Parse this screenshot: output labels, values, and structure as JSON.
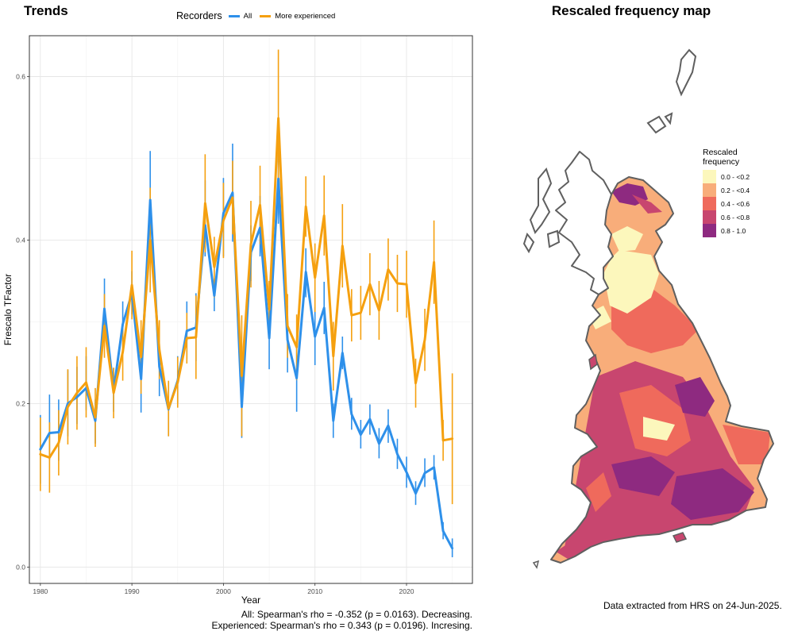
{
  "titles": {
    "left": "Trends",
    "right": "Rescaled frequency map"
  },
  "trend_legend": {
    "title": "Recorders",
    "items": [
      {
        "label": "All",
        "color": "#2e90ea"
      },
      {
        "label": "More experienced",
        "color": "#f5a00f"
      }
    ]
  },
  "stats": {
    "all": "All: Spearman's rho = -0.352 (p = 0.0163). Decreasing.",
    "experienced": "Experienced: Spearman's rho = 0.343 (p = 0.0196). Incresing."
  },
  "map": {
    "source_note": "Data extracted from HRS on 24-Jun-2025.",
    "legend_title_1": "Rescaled",
    "legend_title_2": "frequency",
    "legend": [
      {
        "label": "0.0 - <0.2",
        "color": "#fcf7bc"
      },
      {
        "label": "0.2 - <0.4",
        "color": "#f8ad7a"
      },
      {
        "label": "0.4 - <0.6",
        "color": "#ef6a5c"
      },
      {
        "label": "0.6 - <0.8",
        "color": "#c8466f"
      },
      {
        "label": "0.8 - 1.0",
        "color": "#8e2a80"
      }
    ]
  },
  "chart_data": {
    "type": "line",
    "title": "",
    "xlabel": "Year",
    "ylabel": "Frescalo TFactor",
    "xlim": [
      1978.8,
      2027.2
    ],
    "ylim": [
      -0.02,
      0.65
    ],
    "xticks": [
      1980,
      1990,
      2000,
      2010,
      2020
    ],
    "yticks": [
      0.0,
      0.2,
      0.4,
      0.6
    ],
    "ytick_labels": [
      "0.0",
      "0.2",
      "0.4",
      "0.6"
    ],
    "grid": true,
    "legend_position": "top",
    "x": [
      1980,
      1981,
      1982,
      1983,
      1984,
      1985,
      1986,
      1987,
      1988,
      1989,
      1990,
      1991,
      1992,
      1993,
      1994,
      1995,
      1996,
      1997,
      1998,
      1999,
      2000,
      2001,
      2002,
      2003,
      2004,
      2005,
      2006,
      2007,
      2008,
      2009,
      2010,
      2011,
      2012,
      2013,
      2014,
      2015,
      2016,
      2017,
      2018,
      2019,
      2020,
      2021,
      2022,
      2023,
      2024,
      2025
    ],
    "series": [
      {
        "name": "All",
        "color": "#2e90ea",
        "values": [
          0.144,
          0.164,
          0.165,
          0.2,
          0.208,
          0.219,
          0.179,
          0.316,
          0.216,
          0.297,
          0.335,
          0.23,
          0.449,
          0.245,
          0.193,
          0.228,
          0.289,
          0.293,
          0.418,
          0.332,
          0.433,
          0.458,
          0.196,
          0.385,
          0.415,
          0.28,
          0.475,
          0.278,
          0.231,
          0.361,
          0.282,
          0.317,
          0.179,
          0.262,
          0.187,
          0.162,
          0.181,
          0.151,
          0.173,
          0.138,
          0.116,
          0.09,
          0.115,
          0.122,
          0.044,
          0.023
        ],
        "lower": [
          0.102,
          0.131,
          0.13,
          0.16,
          0.175,
          0.192,
          0.151,
          0.28,
          0.19,
          0.268,
          0.309,
          0.189,
          0.389,
          0.209,
          0.16,
          0.2,
          0.254,
          0.252,
          0.38,
          0.313,
          0.38,
          0.398,
          0.158,
          0.35,
          0.38,
          0.242,
          0.42,
          0.238,
          0.19,
          0.33,
          0.247,
          0.285,
          0.158,
          0.242,
          0.168,
          0.145,
          0.162,
          0.133,
          0.152,
          0.12,
          0.097,
          0.076,
          0.098,
          0.107,
          0.034,
          0.012
        ],
        "upper": [
          0.186,
          0.211,
          0.205,
          0.241,
          0.245,
          0.258,
          0.205,
          0.353,
          0.243,
          0.325,
          0.362,
          0.271,
          0.509,
          0.282,
          0.226,
          0.258,
          0.325,
          0.335,
          0.473,
          0.353,
          0.476,
          0.518,
          0.236,
          0.418,
          0.454,
          0.32,
          0.53,
          0.32,
          0.27,
          0.39,
          0.318,
          0.349,
          0.2,
          0.282,
          0.207,
          0.18,
          0.199,
          0.17,
          0.193,
          0.157,
          0.135,
          0.105,
          0.133,
          0.137,
          0.055,
          0.035
        ]
      },
      {
        "name": "More experienced",
        "color": "#f5a00f",
        "values": [
          0.138,
          0.134,
          0.152,
          0.196,
          0.213,
          0.226,
          0.183,
          0.295,
          0.213,
          0.263,
          0.345,
          0.257,
          0.4,
          0.266,
          0.194,
          0.226,
          0.28,
          0.281,
          0.445,
          0.367,
          0.424,
          0.452,
          0.234,
          0.395,
          0.443,
          0.315,
          0.549,
          0.295,
          0.269,
          0.441,
          0.354,
          0.43,
          0.258,
          0.393,
          0.308,
          0.311,
          0.346,
          0.314,
          0.364,
          0.347,
          0.346,
          0.225,
          0.278,
          0.373,
          0.155,
          0.157
        ],
        "lower": [
          0.093,
          0.091,
          0.112,
          0.15,
          0.168,
          0.183,
          0.147,
          0.256,
          0.182,
          0.228,
          0.303,
          0.212,
          0.336,
          0.23,
          0.16,
          0.195,
          0.249,
          0.23,
          0.385,
          0.33,
          0.378,
          0.407,
          0.16,
          0.342,
          0.395,
          0.28,
          0.465,
          0.256,
          0.229,
          0.404,
          0.312,
          0.381,
          0.216,
          0.342,
          0.276,
          0.278,
          0.308,
          0.278,
          0.326,
          0.312,
          0.305,
          0.195,
          0.24,
          0.322,
          0.13,
          0.077
        ],
        "upper": [
          0.183,
          0.177,
          0.192,
          0.242,
          0.258,
          0.269,
          0.219,
          0.334,
          0.244,
          0.298,
          0.387,
          0.302,
          0.464,
          0.302,
          0.228,
          0.257,
          0.311,
          0.332,
          0.505,
          0.404,
          0.47,
          0.497,
          0.308,
          0.448,
          0.491,
          0.35,
          0.633,
          0.334,
          0.309,
          0.478,
          0.396,
          0.479,
          0.3,
          0.444,
          0.34,
          0.344,
          0.384,
          0.35,
          0.402,
          0.382,
          0.387,
          0.255,
          0.316,
          0.424,
          0.18,
          0.237
        ]
      }
    ]
  }
}
